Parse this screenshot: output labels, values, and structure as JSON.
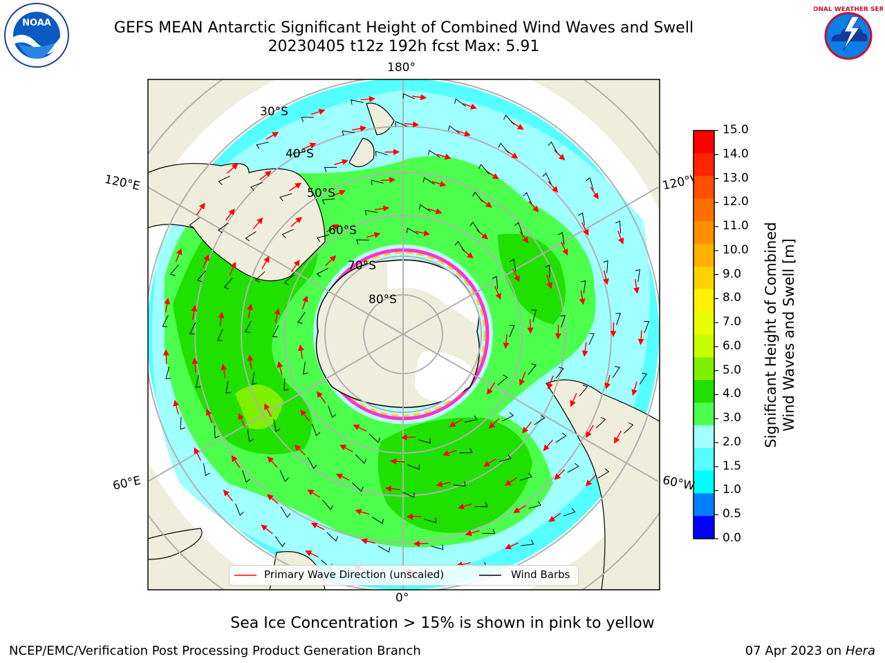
{
  "header": {
    "title_line1": "GEFS MEAN Antarctic Significant Height of Combined Wind Waves and Swell",
    "title_line2": "20230405 t12z 192h fcst   Max: 5.91"
  },
  "logos": {
    "noaa_text": "NOAA",
    "nws_text": "NATIONAL WEATHER SERVICE"
  },
  "map": {
    "longitude_labels": {
      "top": "180°",
      "bottom": "0°",
      "upper_left": "120°E",
      "upper_right": "120°W",
      "lower_left": "60°E",
      "lower_right": "60°W"
    },
    "latitude_labels": [
      "30°S",
      "40°S",
      "50°S",
      "60°S",
      "70°S",
      "80°S"
    ]
  },
  "legend": {
    "wave_direction": "Primary Wave Direction (unscaled)",
    "wind_barbs": "Wind Barbs"
  },
  "colorbar": {
    "label_line1": "Significant Height of Combined",
    "label_line2": "Wind Waves and Swell [m]",
    "ticks": [
      "15.0",
      "14.0",
      "13.0",
      "12.0",
      "11.0",
      "10.0",
      "9.0",
      "8.0",
      "7.0",
      "6.0",
      "5.0",
      "4.0",
      "3.0",
      "2.0",
      "1.5",
      "1.0",
      "0.5",
      "0.0"
    ],
    "colors_top_to_bottom": [
      "#ff0000",
      "#ff2400",
      "#ff4f00",
      "#ff6f00",
      "#ff8f00",
      "#ffb000",
      "#ffd200",
      "#fff200",
      "#e8ff00",
      "#c8ff00",
      "#7ff000",
      "#20e000",
      "#4dff4d",
      "#a0ffff",
      "#55ffff",
      "#00ffff",
      "#0080ff",
      "#0000ff"
    ]
  },
  "notes": {
    "sea_ice": "Sea Ice Concentration > 15% is shown in pink to yellow"
  },
  "footer": {
    "left": "NCEP/EMC/Verification Post Processing Product Generation Branch",
    "right_prefix": "07 Apr 2023 on ",
    "right_machine": "Hera"
  }
}
